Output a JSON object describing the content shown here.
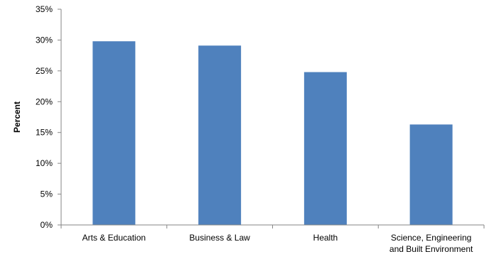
{
  "chart_data": {
    "type": "bar",
    "categories": [
      [
        "Arts & Education"
      ],
      [
        "Business & Law"
      ],
      [
        "Health"
      ],
      [
        "Science, Engineering",
        "and Built Environment"
      ]
    ],
    "values": [
      29.8,
      29.1,
      24.8,
      16.3
    ],
    "ylabel": "Percent",
    "ylim": [
      0,
      35
    ],
    "yticks": [
      0,
      5,
      10,
      15,
      20,
      25,
      30,
      35
    ],
    "ytick_format": "{v}%",
    "grid": false,
    "legend": "none",
    "colors": {
      "bar": "#4f81bd",
      "axis": "#868686"
    }
  }
}
